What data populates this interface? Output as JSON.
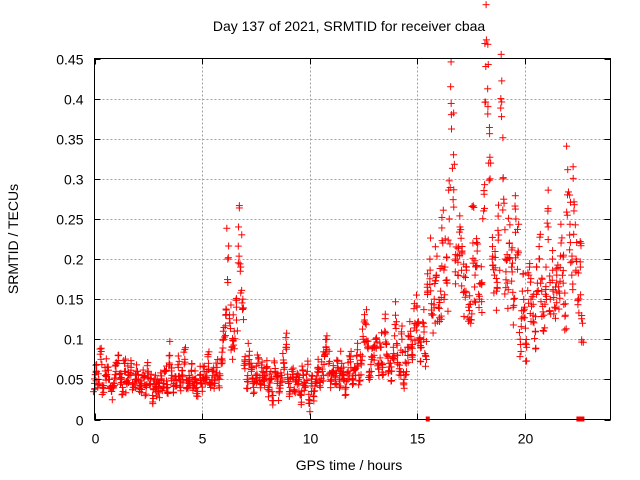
{
  "chart_data": {
    "type": "scatter",
    "title": "Day 137 of 2021, SRMTID for receiver cbaa",
    "xlabel": "GPS time / hours",
    "ylabel": "SRMTID / TECUs",
    "xlim": [
      0,
      24
    ],
    "ylim": [
      0,
      0.45
    ],
    "x_ticks": [
      0,
      5,
      10,
      15,
      20
    ],
    "x_tick_labels": [
      "0",
      "5",
      "10",
      "15",
      "20"
    ],
    "y_ticks": [
      0,
      0.05,
      0.1,
      0.15,
      0.2,
      0.25,
      0.3,
      0.35,
      0.4,
      0.45
    ],
    "y_tick_labels": [
      "0",
      "0.05",
      "0.1",
      "0.15",
      "0.2",
      "0.25",
      "0.3",
      "0.35",
      "0.4",
      "0.45"
    ],
    "grid": true,
    "marker": "plus",
    "color": "#ff0000",
    "series": [
      {
        "name": "SRMTID",
        "x": [
          0.0,
          0.1,
          0.2,
          0.3,
          0.4,
          0.5,
          0.6,
          0.7,
          0.8,
          0.9,
          1.0,
          1.1,
          1.2,
          1.3,
          1.4,
          1.5,
          1.6,
          1.7,
          1.8,
          1.9,
          2.0,
          2.1,
          2.2,
          2.3,
          2.4,
          2.5,
          2.6,
          2.7,
          2.8,
          2.9,
          3.0,
          3.1,
          3.2,
          3.3,
          3.4,
          3.5,
          3.6,
          3.7,
          3.8,
          3.9,
          4.0,
          4.1,
          4.2,
          4.3,
          4.4,
          4.5,
          4.6,
          4.7,
          4.8,
          4.9,
          5.0,
          5.1,
          5.2,
          5.3,
          5.4,
          5.5,
          5.6,
          5.7,
          5.8,
          5.9,
          6.0,
          6.1,
          6.2,
          6.3,
          6.4,
          6.5,
          6.6,
          6.7,
          6.8,
          6.9,
          7.0,
          7.1,
          7.2,
          7.3,
          7.4,
          7.5,
          7.6,
          7.7,
          7.8,
          7.9,
          8.0,
          8.1,
          8.2,
          8.3,
          8.4,
          8.5,
          8.6,
          8.7,
          8.8,
          8.9,
          9.0,
          9.1,
          9.2,
          9.3,
          9.4,
          9.5,
          9.6,
          9.7,
          9.8,
          9.9,
          10.0,
          10.1,
          10.2,
          10.3,
          10.4,
          10.5,
          10.6,
          10.7,
          10.8,
          10.9,
          11.0,
          11.1,
          11.2,
          11.3,
          11.4,
          11.5,
          11.6,
          11.7,
          11.8,
          11.9,
          12.0,
          12.1,
          12.2,
          12.3,
          12.4,
          12.5,
          12.6,
          12.7,
          12.8,
          12.9,
          13.0,
          13.1,
          13.2,
          13.3,
          13.4,
          13.5,
          13.6,
          13.7,
          13.8,
          13.9,
          14.0,
          14.1,
          14.2,
          14.3,
          14.4,
          14.5,
          14.6,
          14.7,
          14.8,
          14.9,
          15.0,
          15.1,
          15.2,
          15.3,
          15.4,
          15.5,
          15.6,
          15.7,
          15.8,
          15.9,
          16.0,
          16.1,
          16.2,
          16.3,
          16.4,
          16.5,
          16.6,
          16.7,
          16.8,
          16.9,
          17.0,
          17.1,
          17.2,
          17.3,
          17.4,
          17.5,
          17.6,
          17.7,
          17.8,
          17.9,
          18.0,
          18.1,
          18.2,
          18.3,
          18.4,
          18.5,
          18.6,
          18.7,
          18.8,
          18.9,
          19.0,
          19.1,
          19.2,
          19.3,
          19.4,
          19.5,
          19.6,
          19.7,
          19.8,
          19.9,
          20.0,
          20.1,
          20.2,
          20.3,
          20.4,
          20.5,
          20.6,
          20.7,
          20.8,
          20.9,
          21.0,
          21.1,
          21.2,
          21.3,
          21.4,
          21.5,
          21.6,
          21.7,
          21.8,
          21.9,
          22.0,
          22.1,
          22.2,
          22.3,
          22.4,
          22.5,
          22.6,
          22.7
        ],
        "y": [
          0.045,
          0.06,
          0.05,
          0.075,
          0.04,
          0.055,
          0.065,
          0.05,
          0.035,
          0.045,
          0.06,
          0.08,
          0.05,
          0.04,
          0.07,
          0.045,
          0.055,
          0.065,
          0.04,
          0.05,
          0.06,
          0.035,
          0.045,
          0.055,
          0.04,
          0.06,
          0.045,
          0.03,
          0.05,
          0.04,
          0.035,
          0.05,
          0.045,
          0.06,
          0.04,
          0.08,
          0.055,
          0.045,
          0.05,
          0.065,
          0.04,
          0.055,
          0.075,
          0.05,
          0.045,
          0.06,
          0.04,
          0.05,
          0.035,
          0.055,
          0.045,
          0.06,
          0.05,
          0.07,
          0.04,
          0.055,
          0.045,
          0.065,
          0.05,
          0.075,
          0.1,
          0.13,
          0.2,
          0.12,
          0.09,
          0.11,
          0.14,
          0.24,
          0.19,
          0.15,
          0.07,
          0.05,
          0.08,
          0.06,
          0.04,
          0.055,
          0.07,
          0.045,
          0.06,
          0.05,
          0.065,
          0.04,
          0.05,
          0.03,
          0.06,
          0.045,
          0.035,
          0.055,
          0.07,
          0.09,
          0.05,
          0.04,
          0.06,
          0.035,
          0.05,
          0.045,
          0.03,
          0.055,
          0.04,
          0.06,
          0.02,
          0.045,
          0.035,
          0.05,
          0.065,
          0.04,
          0.06,
          0.08,
          0.1,
          0.07,
          0.05,
          0.06,
          0.045,
          0.065,
          0.05,
          0.07,
          0.055,
          0.04,
          0.06,
          0.075,
          0.05,
          0.065,
          0.08,
          0.055,
          0.07,
          0.1,
          0.12,
          0.09,
          0.06,
          0.075,
          0.08,
          0.1,
          0.07,
          0.09,
          0.065,
          0.11,
          0.08,
          0.07,
          0.06,
          0.09,
          0.13,
          0.08,
          0.06,
          0.1,
          0.05,
          0.07,
          0.09,
          0.11,
          0.08,
          0.12,
          0.14,
          0.1,
          0.09,
          0.12,
          0.08,
          0.16,
          0.2,
          0.13,
          0.15,
          0.18,
          0.14,
          0.16,
          0.22,
          0.19,
          0.17,
          0.25,
          0.38,
          0.33,
          0.2,
          0.18,
          0.24,
          0.21,
          0.16,
          0.19,
          0.14,
          0.12,
          0.22,
          0.18,
          0.21,
          0.15,
          0.17,
          0.26,
          0.44,
          0.39,
          0.3,
          0.2,
          0.18,
          0.16,
          0.23,
          0.4,
          0.3,
          0.2,
          0.17,
          0.22,
          0.19,
          0.15,
          0.25,
          0.21,
          0.1,
          0.16,
          0.14,
          0.09,
          0.18,
          0.15,
          0.13,
          0.11,
          0.17,
          0.2,
          0.16,
          0.13,
          0.19,
          0.24,
          0.15,
          0.2,
          0.14,
          0.18,
          0.16,
          0.22,
          0.17,
          0.13,
          0.28,
          0.23,
          0.18,
          0.26,
          0.2,
          0.15,
          0.19,
          0.12
        ],
        "gap_markers_x": [
          15.5,
          22.6
        ]
      }
    ]
  }
}
